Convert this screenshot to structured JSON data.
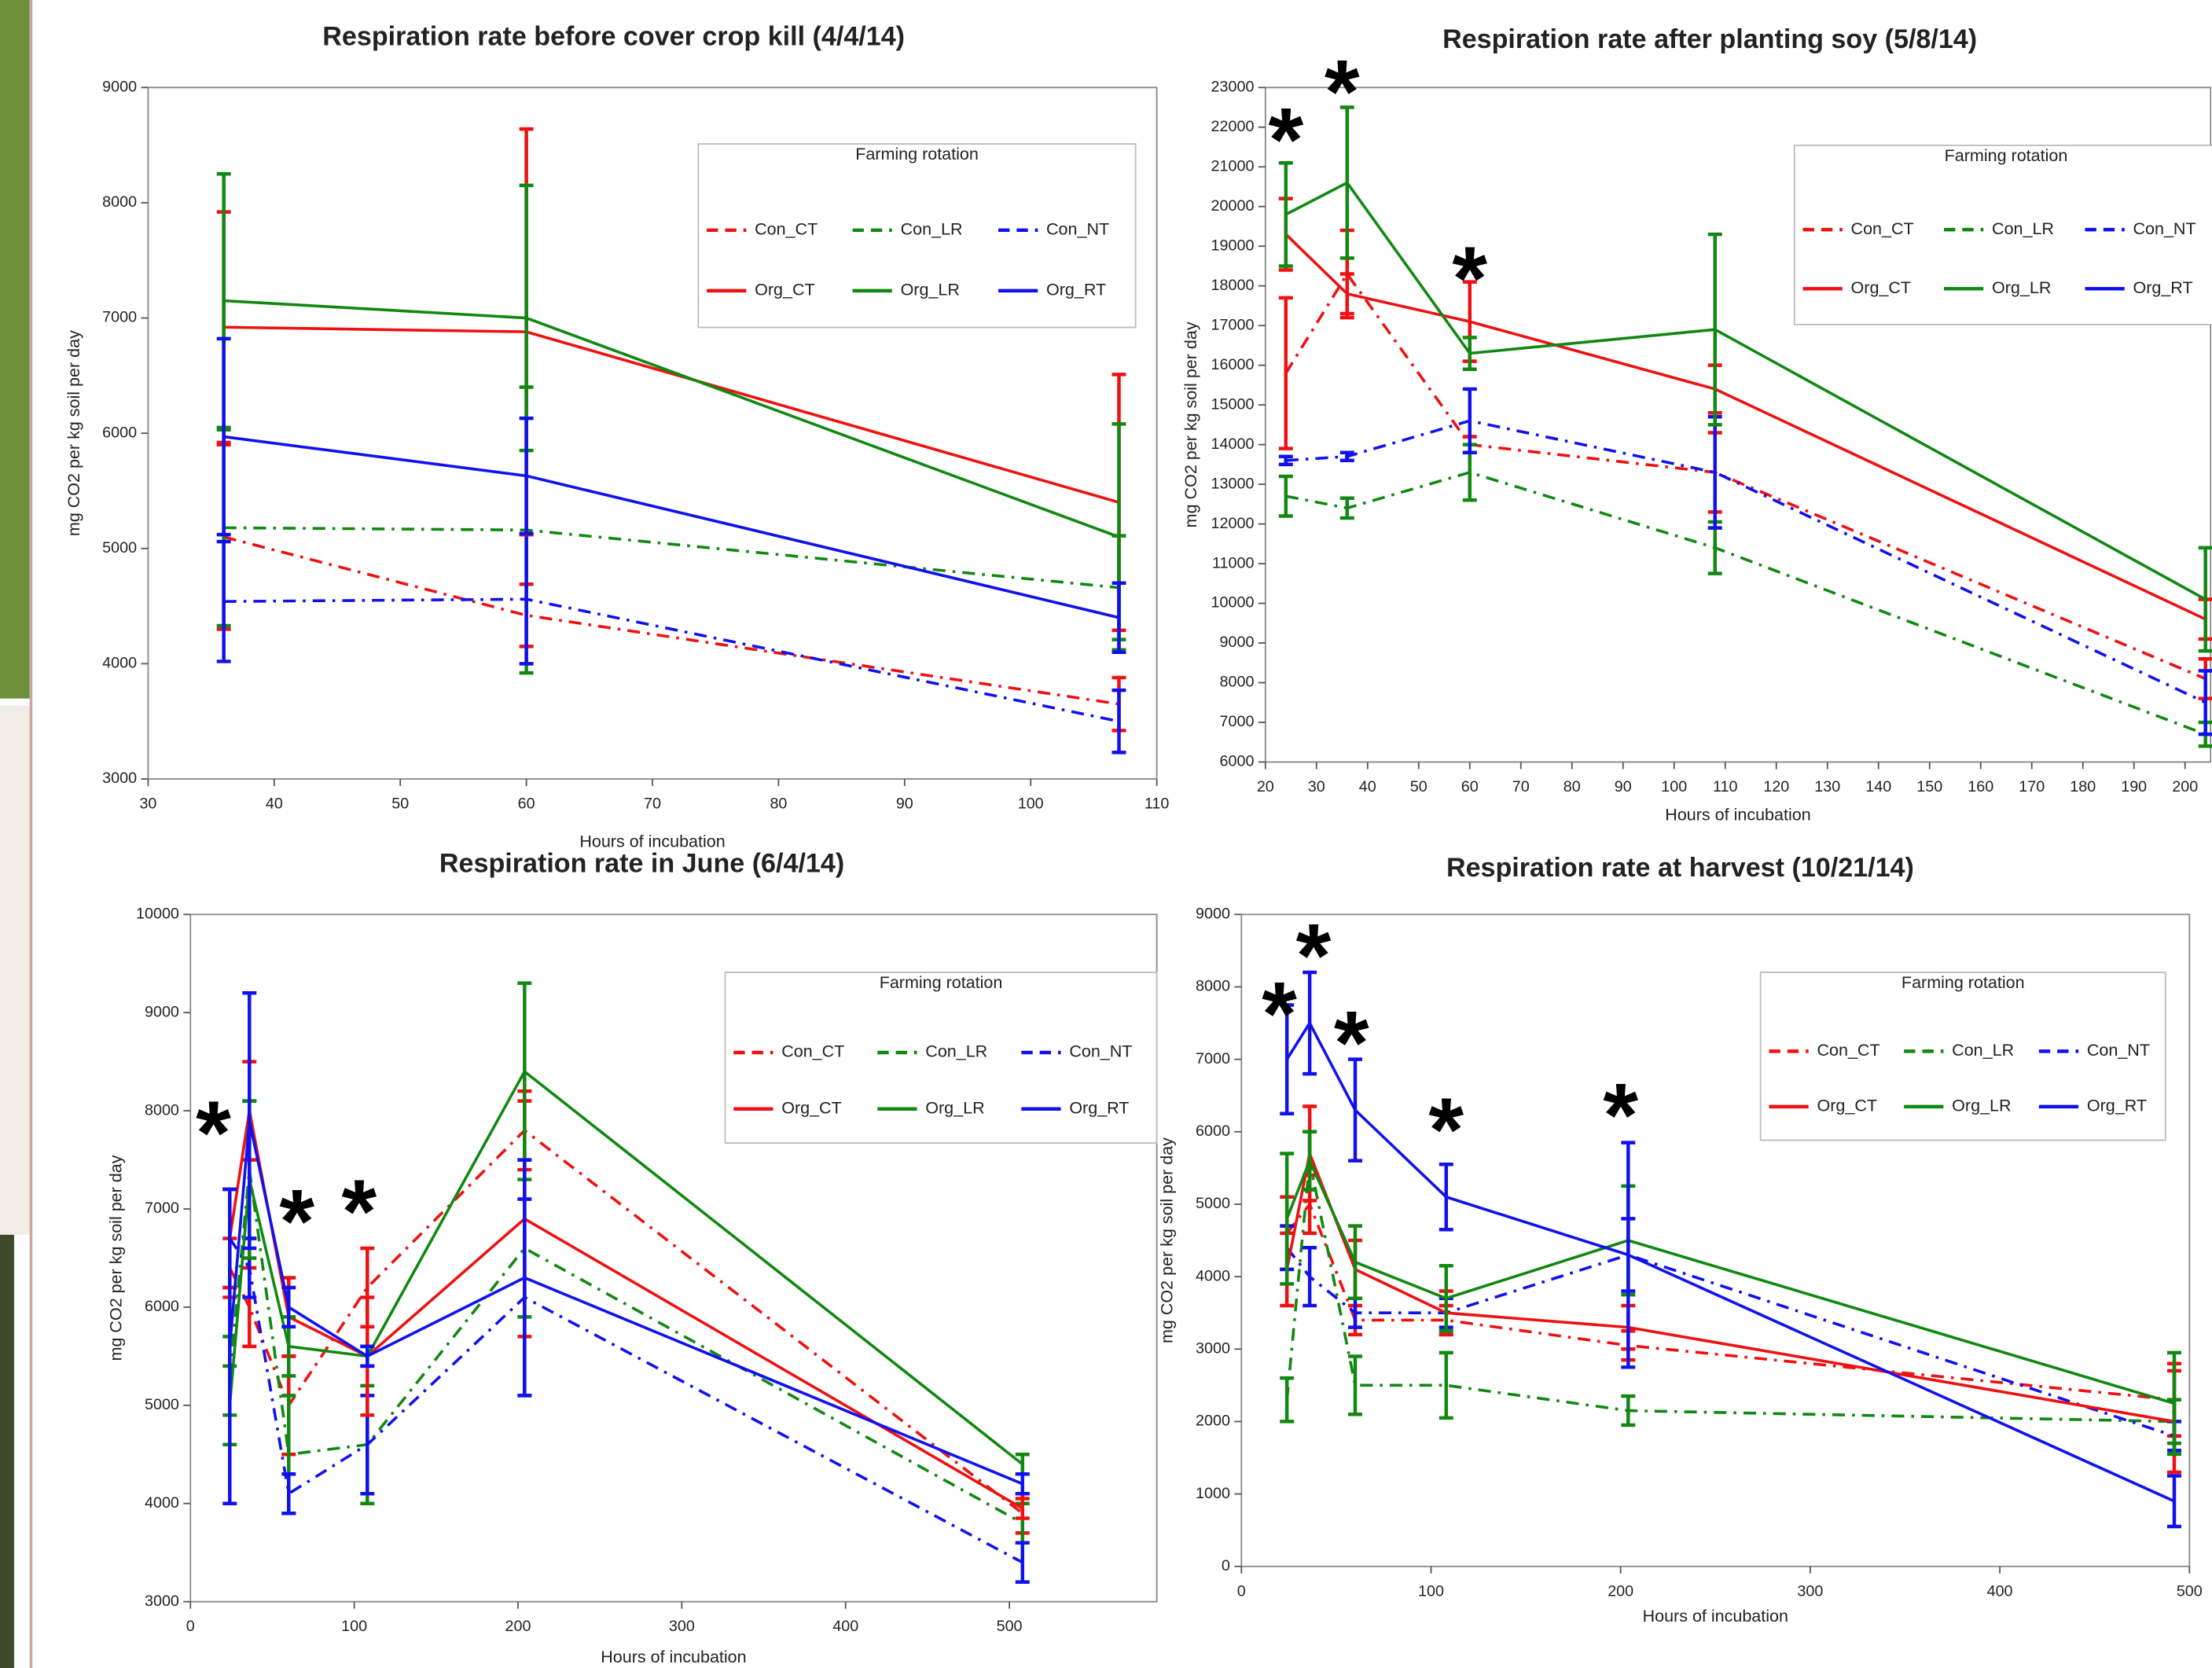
{
  "chart_data": [
    {
      "type": "line",
      "title": "Respiration rate before cover crop kill (4/4/14)",
      "x_label": "Hours of incubation",
      "y_label": "mg CO2 per kg soil per day",
      "legend_title": "Farming rotation",
      "legend_position": "upper right",
      "x": [
        36,
        60,
        107
      ],
      "xlim": [
        30,
        110
      ],
      "xticks": [
        30,
        40,
        50,
        60,
        70,
        80,
        90,
        100,
        110
      ],
      "ylim": [
        3000,
        9000
      ],
      "yticks": [
        3000,
        4000,
        5000,
        6000,
        7000,
        8000,
        9000
      ],
      "series": [
        {
          "name": "Con_CT",
          "color": "#ee1111",
          "line_style": "dashed",
          "values": [
            5100,
            4420,
            3650
          ],
          "errors": [
            800,
            270,
            230
          ]
        },
        {
          "name": "Con_LR",
          "color": "#118811",
          "line_style": "dashed",
          "values": [
            5180,
            5160,
            4660
          ],
          "errors": [
            850,
            1240,
            450
          ]
        },
        {
          "name": "Con_NT",
          "color": "#1111ee",
          "line_style": "dashed",
          "values": [
            4540,
            4560,
            3500
          ],
          "errors": [
            520,
            560,
            270
          ]
        },
        {
          "name": "Org_CT",
          "color": "#ee1111",
          "line_style": "solid",
          "values": [
            6920,
            6880,
            5400
          ],
          "errors": [
            1000,
            1760,
            1110
          ]
        },
        {
          "name": "Org_LR",
          "color": "#118811",
          "line_style": "solid",
          "values": [
            7150,
            7000,
            5100
          ],
          "errors": [
            1100,
            1150,
            980
          ]
        },
        {
          "name": "Org_RT",
          "color": "#1111ee",
          "line_style": "solid",
          "values": [
            5970,
            5630,
            4400
          ],
          "errors": [
            850,
            500,
            300
          ]
        }
      ],
      "annotations": []
    },
    {
      "type": "line",
      "title": "Respiration rate after planting soy (5/8/14)",
      "x_label": "Hours of incubation",
      "y_label": "mg CO2 per kg soil per day",
      "legend_title": "Farming rotation",
      "legend_position": "upper right",
      "x": [
        24,
        36,
        60,
        108,
        204
      ],
      "xlim": [
        20,
        205
      ],
      "xticks": [
        20,
        30,
        40,
        50,
        60,
        70,
        80,
        90,
        100,
        110,
        120,
        130,
        140,
        150,
        160,
        170,
        180,
        190,
        200
      ],
      "ylim": [
        6000,
        23000
      ],
      "yticks": [
        6000,
        7000,
        8000,
        9000,
        10000,
        11000,
        12000,
        13000,
        14000,
        15000,
        16000,
        17000,
        18000,
        19000,
        20000,
        21000,
        22000,
        23000
      ],
      "series": [
        {
          "name": "Con_CT",
          "color": "#ee1111",
          "line_style": "dashed",
          "values": [
            15800,
            18300,
            14000,
            13300,
            8100
          ],
          "errors": [
            1900,
            1100,
            200,
            1000,
            500
          ]
        },
        {
          "name": "Con_LR",
          "color": "#118811",
          "line_style": "dashed",
          "values": [
            12700,
            12400,
            13300,
            11400,
            6700
          ],
          "errors": [
            500,
            250,
            700,
            650,
            300
          ]
        },
        {
          "name": "Con_NT",
          "color": "#1111ee",
          "line_style": "dashed",
          "values": [
            13600,
            13700,
            14600,
            13300,
            7500
          ],
          "errors": [
            100,
            100,
            800,
            1400,
            800
          ]
        },
        {
          "name": "Org_CT",
          "color": "#ee1111",
          "line_style": "solid",
          "values": [
            19300,
            17800,
            17100,
            15400,
            9600
          ],
          "errors": [
            900,
            500,
            1000,
            600,
            500
          ]
        },
        {
          "name": "Org_LR",
          "color": "#118811",
          "line_style": "solid",
          "values": [
            19800,
            20600,
            16300,
            16900,
            10100
          ],
          "errors": [
            1300,
            1900,
            400,
            2400,
            1300
          ]
        },
        {
          "name": "Org_RT",
          "color": "#1111ee",
          "line_style": "solid",
          "values": [
            null,
            null,
            null,
            null,
            null
          ],
          "errors": [
            null,
            null,
            null,
            null,
            null
          ]
        }
      ],
      "annotations": [
        {
          "text": "*",
          "x": 24,
          "y": 22000
        },
        {
          "text": "*",
          "x": 35,
          "y": 23200
        },
        {
          "text": "*",
          "x": 60,
          "y": 18500
        }
      ]
    },
    {
      "type": "line",
      "title": "Respiration rate in June (6/4/14)",
      "x_label": "Hours of incubation",
      "y_label": "mg CO2 per kg soil per day",
      "legend_title": "Farming rotation",
      "legend_position": "upper right",
      "x": [
        24,
        36,
        60,
        108,
        204,
        508
      ],
      "xlim": [
        0,
        590
      ],
      "xticks": [
        0,
        100,
        200,
        300,
        400,
        500
      ],
      "ylim": [
        3000,
        10000
      ],
      "yticks": [
        3000,
        4000,
        5000,
        6000,
        7000,
        8000,
        9000,
        10000
      ],
      "series": [
        {
          "name": "Con_CT",
          "color": "#ee1111",
          "line_style": "dashed",
          "values": [
            6400,
            6000,
            5000,
            6200,
            7800,
            3900
          ],
          "errors": [
            300,
            400,
            500,
            400,
            400,
            200
          ]
        },
        {
          "name": "Con_LR",
          "color": "#118811",
          "line_style": "dashed",
          "values": [
            5300,
            7400,
            4500,
            4600,
            6600,
            3800
          ],
          "errors": [
            400,
            700,
            600,
            600,
            700,
            200
          ]
        },
        {
          "name": "Con_NT",
          "color": "#1111ee",
          "line_style": "dashed",
          "values": [
            6700,
            6400,
            4100,
            4600,
            6100,
            3400
          ],
          "errors": [
            500,
            300,
            200,
            500,
            1000,
            200
          ]
        },
        {
          "name": "Org_CT",
          "color": "#ee1111",
          "line_style": "solid",
          "values": [
            6700,
            8000,
            5900,
            5500,
            6900,
            3950
          ],
          "errors": [
            500,
            500,
            400,
            600,
            1200,
            100
          ]
        },
        {
          "name": "Org_LR",
          "color": "#118811",
          "line_style": "solid",
          "values": [
            5000,
            7300,
            5600,
            5500,
            8400,
            4400
          ],
          "errors": [
            400,
            800,
            300,
            100,
            900,
            100
          ]
        },
        {
          "name": "Org_RT",
          "color": "#1111ee",
          "line_style": "solid",
          "values": [
            5600,
            7900,
            6000,
            5500,
            6300,
            4200
          ],
          "errors": [
            1600,
            1300,
            200,
            100,
            1200,
            100
          ]
        }
      ],
      "annotations": [
        {
          "text": "*",
          "x": 14,
          "y": 7900
        },
        {
          "text": "*",
          "x": 65,
          "y": 7000
        },
        {
          "text": "*",
          "x": 103,
          "y": 7100
        }
      ]
    },
    {
      "type": "line",
      "title": "Respiration rate at harvest (10/21/14)",
      "x_label": "Hours of incubation",
      "y_label": "mg CO2 per kg soil per day",
      "legend_title": "Farming rotation",
      "legend_position": "upper right",
      "x": [
        24,
        36,
        60,
        108,
        204,
        492
      ],
      "xlim": [
        0,
        500
      ],
      "xticks": [
        0,
        100,
        200,
        300,
        400,
        500
      ],
      "ylim": [
        0,
        9000
      ],
      "yticks": [
        0,
        1000,
        2000,
        3000,
        4000,
        5000,
        6000,
        7000,
        8000,
        9000
      ],
      "series": [
        {
          "name": "Con_CT",
          "color": "#ee1111",
          "line_style": "dashed",
          "values": [
            4600,
            5000,
            3400,
            3400,
            3050,
            2300
          ],
          "errors": [
            500,
            400,
            200,
            200,
            200,
            500
          ]
        },
        {
          "name": "Con_LR",
          "color": "#118811",
          "line_style": "dashed",
          "values": [
            2300,
            5600,
            2500,
            2500,
            2150,
            2000
          ],
          "errors": [
            300,
            400,
            400,
            450,
            200,
            300
          ]
        },
        {
          "name": "Con_NT",
          "color": "#1111ee",
          "line_style": "dashed",
          "values": [
            4400,
            4000,
            3500,
            3500,
            4300,
            1800
          ],
          "errors": [
            300,
            400,
            200,
            200,
            500,
            200
          ]
        },
        {
          "name": "Org_CT",
          "color": "#ee1111",
          "line_style": "solid",
          "values": [
            4100,
            5700,
            4100,
            3500,
            3300,
            2000
          ],
          "errors": [
            500,
            650,
            400,
            300,
            300,
            700
          ]
        },
        {
          "name": "Org_LR",
          "color": "#118811",
          "line_style": "solid",
          "values": [
            4800,
            5600,
            4200,
            3700,
            4500,
            2250
          ],
          "errors": [
            900,
            400,
            500,
            450,
            750,
            700
          ]
        },
        {
          "name": "Org_RT",
          "color": "#1111ee",
          "line_style": "solid",
          "values": [
            7000,
            7500,
            6300,
            5100,
            4300,
            900
          ],
          "errors": [
            750,
            700,
            700,
            450,
            1550,
            350
          ]
        }
      ],
      "annotations": [
        {
          "text": "*",
          "x": 20,
          "y": 7800
        },
        {
          "text": "*",
          "x": 38,
          "y": 8600
        },
        {
          "text": "*",
          "x": 58,
          "y": 7400
        },
        {
          "text": "*",
          "x": 108,
          "y": 6200
        },
        {
          "text": "*",
          "x": 200,
          "y": 6400
        }
      ]
    }
  ]
}
